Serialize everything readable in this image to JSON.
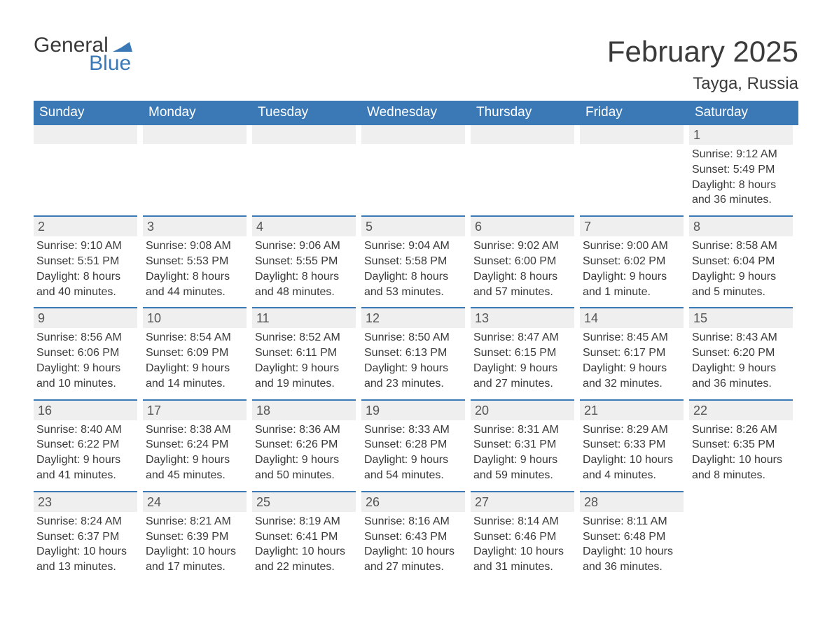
{
  "brand": {
    "part1": "General",
    "part2": "Blue",
    "flag_color": "#3a78b6"
  },
  "title": "February 2025",
  "location": "Tayga, Russia",
  "colors": {
    "header_bg": "#3a78b6",
    "header_text": "#ffffff",
    "daynum_bg": "#efefef",
    "row_divider": "#3a78b6",
    "body_text": "#3a3a3a",
    "page_bg": "#ffffff"
  },
  "typography": {
    "title_fontsize": 42,
    "location_fontsize": 24,
    "dayheader_fontsize": 19,
    "daynum_fontsize": 18,
    "detail_fontsize": 16
  },
  "day_headers": [
    "Sunday",
    "Monday",
    "Tuesday",
    "Wednesday",
    "Thursday",
    "Friday",
    "Saturday"
  ],
  "weeks": [
    [
      null,
      null,
      null,
      null,
      null,
      null,
      {
        "n": "1",
        "sunrise": "Sunrise: 9:12 AM",
        "sunset": "Sunset: 5:49 PM",
        "day1": "Daylight: 8 hours",
        "day2": "and 36 minutes."
      }
    ],
    [
      {
        "n": "2",
        "sunrise": "Sunrise: 9:10 AM",
        "sunset": "Sunset: 5:51 PM",
        "day1": "Daylight: 8 hours",
        "day2": "and 40 minutes."
      },
      {
        "n": "3",
        "sunrise": "Sunrise: 9:08 AM",
        "sunset": "Sunset: 5:53 PM",
        "day1": "Daylight: 8 hours",
        "day2": "and 44 minutes."
      },
      {
        "n": "4",
        "sunrise": "Sunrise: 9:06 AM",
        "sunset": "Sunset: 5:55 PM",
        "day1": "Daylight: 8 hours",
        "day2": "and 48 minutes."
      },
      {
        "n": "5",
        "sunrise": "Sunrise: 9:04 AM",
        "sunset": "Sunset: 5:58 PM",
        "day1": "Daylight: 8 hours",
        "day2": "and 53 minutes."
      },
      {
        "n": "6",
        "sunrise": "Sunrise: 9:02 AM",
        "sunset": "Sunset: 6:00 PM",
        "day1": "Daylight: 8 hours",
        "day2": "and 57 minutes."
      },
      {
        "n": "7",
        "sunrise": "Sunrise: 9:00 AM",
        "sunset": "Sunset: 6:02 PM",
        "day1": "Daylight: 9 hours",
        "day2": "and 1 minute."
      },
      {
        "n": "8",
        "sunrise": "Sunrise: 8:58 AM",
        "sunset": "Sunset: 6:04 PM",
        "day1": "Daylight: 9 hours",
        "day2": "and 5 minutes."
      }
    ],
    [
      {
        "n": "9",
        "sunrise": "Sunrise: 8:56 AM",
        "sunset": "Sunset: 6:06 PM",
        "day1": "Daylight: 9 hours",
        "day2": "and 10 minutes."
      },
      {
        "n": "10",
        "sunrise": "Sunrise: 8:54 AM",
        "sunset": "Sunset: 6:09 PM",
        "day1": "Daylight: 9 hours",
        "day2": "and 14 minutes."
      },
      {
        "n": "11",
        "sunrise": "Sunrise: 8:52 AM",
        "sunset": "Sunset: 6:11 PM",
        "day1": "Daylight: 9 hours",
        "day2": "and 19 minutes."
      },
      {
        "n": "12",
        "sunrise": "Sunrise: 8:50 AM",
        "sunset": "Sunset: 6:13 PM",
        "day1": "Daylight: 9 hours",
        "day2": "and 23 minutes."
      },
      {
        "n": "13",
        "sunrise": "Sunrise: 8:47 AM",
        "sunset": "Sunset: 6:15 PM",
        "day1": "Daylight: 9 hours",
        "day2": "and 27 minutes."
      },
      {
        "n": "14",
        "sunrise": "Sunrise: 8:45 AM",
        "sunset": "Sunset: 6:17 PM",
        "day1": "Daylight: 9 hours",
        "day2": "and 32 minutes."
      },
      {
        "n": "15",
        "sunrise": "Sunrise: 8:43 AM",
        "sunset": "Sunset: 6:20 PM",
        "day1": "Daylight: 9 hours",
        "day2": "and 36 minutes."
      }
    ],
    [
      {
        "n": "16",
        "sunrise": "Sunrise: 8:40 AM",
        "sunset": "Sunset: 6:22 PM",
        "day1": "Daylight: 9 hours",
        "day2": "and 41 minutes."
      },
      {
        "n": "17",
        "sunrise": "Sunrise: 8:38 AM",
        "sunset": "Sunset: 6:24 PM",
        "day1": "Daylight: 9 hours",
        "day2": "and 45 minutes."
      },
      {
        "n": "18",
        "sunrise": "Sunrise: 8:36 AM",
        "sunset": "Sunset: 6:26 PM",
        "day1": "Daylight: 9 hours",
        "day2": "and 50 minutes."
      },
      {
        "n": "19",
        "sunrise": "Sunrise: 8:33 AM",
        "sunset": "Sunset: 6:28 PM",
        "day1": "Daylight: 9 hours",
        "day2": "and 54 minutes."
      },
      {
        "n": "20",
        "sunrise": "Sunrise: 8:31 AM",
        "sunset": "Sunset: 6:31 PM",
        "day1": "Daylight: 9 hours",
        "day2": "and 59 minutes."
      },
      {
        "n": "21",
        "sunrise": "Sunrise: 8:29 AM",
        "sunset": "Sunset: 6:33 PM",
        "day1": "Daylight: 10 hours",
        "day2": "and 4 minutes."
      },
      {
        "n": "22",
        "sunrise": "Sunrise: 8:26 AM",
        "sunset": "Sunset: 6:35 PM",
        "day1": "Daylight: 10 hours",
        "day2": "and 8 minutes."
      }
    ],
    [
      {
        "n": "23",
        "sunrise": "Sunrise: 8:24 AM",
        "sunset": "Sunset: 6:37 PM",
        "day1": "Daylight: 10 hours",
        "day2": "and 13 minutes."
      },
      {
        "n": "24",
        "sunrise": "Sunrise: 8:21 AM",
        "sunset": "Sunset: 6:39 PM",
        "day1": "Daylight: 10 hours",
        "day2": "and 17 minutes."
      },
      {
        "n": "25",
        "sunrise": "Sunrise: 8:19 AM",
        "sunset": "Sunset: 6:41 PM",
        "day1": "Daylight: 10 hours",
        "day2": "and 22 minutes."
      },
      {
        "n": "26",
        "sunrise": "Sunrise: 8:16 AM",
        "sunset": "Sunset: 6:43 PM",
        "day1": "Daylight: 10 hours",
        "day2": "and 27 minutes."
      },
      {
        "n": "27",
        "sunrise": "Sunrise: 8:14 AM",
        "sunset": "Sunset: 6:46 PM",
        "day1": "Daylight: 10 hours",
        "day2": "and 31 minutes."
      },
      {
        "n": "28",
        "sunrise": "Sunrise: 8:11 AM",
        "sunset": "Sunset: 6:48 PM",
        "day1": "Daylight: 10 hours",
        "day2": "and 36 minutes."
      },
      null
    ]
  ]
}
